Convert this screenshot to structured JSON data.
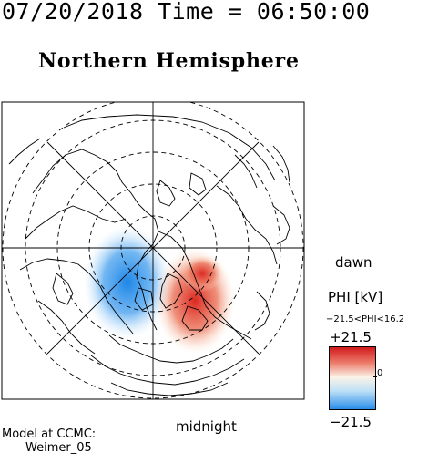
{
  "header": {
    "datetime": "07/20/2018 Time = 06:50:00",
    "title": "Northern Hemisphere"
  },
  "map": {
    "projection": "polar-stereographic",
    "orientation_labels": {
      "right": "dawn",
      "bottom": "midnight"
    },
    "latitude_circles": "dashed",
    "meridians": "solid radial lines",
    "colors": {
      "positive": "#e03028",
      "negative": "#1e86e6",
      "zero": "#ffffff",
      "land_outline": "#000000"
    }
  },
  "colorbar": {
    "variable": "PHI [kV]",
    "range_text": "−21.5<PHI<16.2",
    "max_label": "+21.5",
    "min_label": "−21.5",
    "zero_label": "0"
  },
  "footer": {
    "model_line1": "Model at CCMC:",
    "model_line2": "Weimer_05"
  }
}
